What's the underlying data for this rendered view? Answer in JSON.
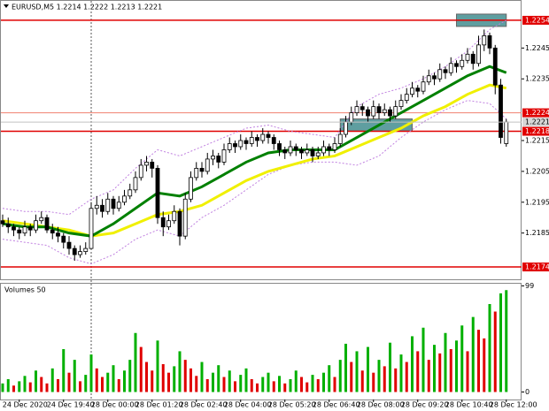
{
  "chart_data": [
    {
      "type": "candlestick",
      "title": "EURUSD,M5  1.2214 1.2222 1.2213 1.2221",
      "categories": [
        null,
        null,
        null,
        "24 Dec 2020",
        null,
        null,
        null,
        null,
        null,
        null,
        null,
        "24 Dec 19:40",
        null,
        null,
        null,
        null,
        null,
        null,
        null,
        "28 Dec 00:00",
        null,
        null,
        null,
        null,
        null,
        null,
        null,
        "28 Dec 01:20",
        null,
        null,
        null,
        null,
        null,
        null,
        null,
        "28 Dec 02:40",
        null,
        null,
        null,
        null,
        null,
        null,
        null,
        "28 Dec 04:00",
        null,
        null,
        null,
        null,
        null,
        null,
        null,
        "28 Dec 05:20",
        null,
        null,
        null,
        null,
        null,
        null,
        null,
        "28 Dec 06:40",
        null,
        null,
        null,
        null,
        null,
        null,
        null,
        "28 Dec 08:00",
        null,
        null,
        null,
        null,
        null,
        null,
        null,
        "28 Dec 09:20",
        null,
        null,
        null,
        null,
        null,
        null,
        null,
        "28 Dec 10:40",
        null,
        null,
        null,
        null,
        null,
        null,
        null,
        "28 Dec 12:00"
      ],
      "open": [
        1.2189,
        1.2188,
        1.2187,
        1.2186,
        1.2185,
        1.2187,
        1.2186,
        1.2189,
        1.219,
        1.2186,
        1.2185,
        1.2184,
        1.2182,
        1.218,
        1.2178,
        1.2179,
        1.218,
        1.2193,
        1.2194,
        1.2192,
        1.2196,
        1.2193,
        1.2195,
        1.2197,
        1.2199,
        1.2203,
        1.2207,
        1.2208,
        1.2206,
        1.219,
        1.2187,
        1.2189,
        1.2192,
        1.2184,
        1.2196,
        1.2203,
        1.2206,
        1.2205,
        1.2209,
        1.221,
        1.2208,
        1.2212,
        1.2214,
        1.2213,
        1.2215,
        1.2214,
        1.2216,
        1.2215,
        1.2217,
        1.2216,
        1.2214,
        1.2212,
        1.2211,
        1.2213,
        1.2212,
        1.2211,
        1.2212,
        1.221,
        1.2211,
        1.2213,
        1.2212,
        1.2214,
        1.2217,
        1.2221,
        1.2224,
        1.2226,
        1.2225,
        1.2223,
        1.2226,
        1.2224,
        1.2225,
        1.2223,
        1.2226,
        1.2228,
        1.223,
        1.2232,
        1.2231,
        1.2234,
        1.2236,
        1.2235,
        1.2238,
        1.2237,
        1.224,
        1.2239,
        1.2241,
        1.2243,
        1.224,
        1.2246,
        1.2249,
        1.2245,
        1.2233,
        1.2214
      ],
      "high": [
        1.2191,
        1.219,
        1.2188,
        1.2187,
        1.2189,
        1.2188,
        1.2191,
        1.2192,
        1.2191,
        1.2188,
        1.2187,
        1.2185,
        1.2184,
        1.2181,
        1.2181,
        1.2182,
        1.2195,
        1.2197,
        1.2196,
        1.2198,
        1.2197,
        1.2197,
        1.2199,
        1.2201,
        1.2205,
        1.2209,
        1.221,
        1.2209,
        1.2207,
        1.2192,
        1.2191,
        1.2194,
        1.2193,
        1.2198,
        1.2205,
        1.2208,
        1.2208,
        1.2211,
        1.2212,
        1.2211,
        1.2214,
        1.2216,
        1.2215,
        1.2217,
        1.2216,
        1.2218,
        1.2217,
        1.2219,
        1.2218,
        1.2217,
        1.2215,
        1.2213,
        1.2215,
        1.2214,
        1.2213,
        1.2214,
        1.2213,
        1.2213,
        1.2215,
        1.2214,
        1.2216,
        1.2219,
        1.2223,
        1.2226,
        1.2228,
        1.2227,
        1.2226,
        1.2228,
        1.2227,
        1.2227,
        1.2226,
        1.2228,
        1.223,
        1.2232,
        1.2234,
        1.2233,
        1.2236,
        1.2238,
        1.2237,
        1.224,
        1.2239,
        1.2242,
        1.2241,
        1.2243,
        1.2245,
        1.2244,
        1.2249,
        1.2251,
        1.225,
        1.2246,
        1.2235,
        1.2222
      ],
      "low": [
        1.2187,
        1.2185,
        1.2184,
        1.2183,
        1.2184,
        1.2184,
        1.2185,
        1.2188,
        1.2185,
        1.2183,
        1.2182,
        1.218,
        1.2178,
        1.2176,
        1.2177,
        1.2178,
        1.218,
        1.2191,
        1.219,
        1.2191,
        1.2191,
        1.2192,
        1.2194,
        1.2196,
        1.2198,
        1.2202,
        1.2205,
        1.2203,
        1.2188,
        1.2184,
        1.2186,
        1.2188,
        1.2181,
        1.2183,
        1.2195,
        1.2202,
        1.2203,
        1.2204,
        1.2207,
        1.2206,
        1.2207,
        1.2211,
        1.2211,
        1.2212,
        1.2212,
        1.2213,
        1.2213,
        1.2214,
        1.2214,
        1.2212,
        1.221,
        1.2209,
        1.221,
        1.221,
        1.2209,
        1.221,
        1.2208,
        1.2209,
        1.221,
        1.221,
        1.2211,
        1.2213,
        1.2216,
        1.222,
        1.2223,
        1.2223,
        1.2221,
        1.2222,
        1.2222,
        1.2223,
        1.2221,
        1.2222,
        1.2225,
        1.2227,
        1.2229,
        1.2229,
        1.223,
        1.2233,
        1.2233,
        1.2234,
        1.2235,
        1.2236,
        1.2237,
        1.2238,
        1.224,
        1.2238,
        1.2239,
        1.2244,
        1.2243,
        1.223,
        1.2214,
        1.2213
      ],
      "close": [
        1.2188,
        1.2187,
        1.2186,
        1.2185,
        1.2187,
        1.2186,
        1.2189,
        1.219,
        1.2186,
        1.2185,
        1.2184,
        1.2182,
        1.218,
        1.2178,
        1.2179,
        1.218,
        1.2193,
        1.2194,
        1.2192,
        1.2196,
        1.2193,
        1.2195,
        1.2197,
        1.2199,
        1.2203,
        1.2207,
        1.2208,
        1.2206,
        1.219,
        1.2187,
        1.2189,
        1.2192,
        1.2184,
        1.2196,
        1.2203,
        1.2206,
        1.2205,
        1.2209,
        1.221,
        1.2208,
        1.2212,
        1.2214,
        1.2213,
        1.2215,
        1.2214,
        1.2216,
        1.2215,
        1.2217,
        1.2216,
        1.2214,
        1.2212,
        1.2211,
        1.2213,
        1.2212,
        1.2211,
        1.2212,
        1.221,
        1.2211,
        1.2213,
        1.2212,
        1.2214,
        1.2217,
        1.2221,
        1.2224,
        1.2226,
        1.2225,
        1.2223,
        1.2226,
        1.2224,
        1.2225,
        1.2223,
        1.2226,
        1.2228,
        1.223,
        1.2232,
        1.2231,
        1.2234,
        1.2236,
        1.2235,
        1.2238,
        1.2237,
        1.224,
        1.2239,
        1.2241,
        1.2243,
        1.224,
        1.2246,
        1.2249,
        1.2245,
        1.2233,
        1.2216,
        1.2221
      ],
      "up_color": "#ffffff",
      "down_color": "#000000",
      "line_x": [
        0,
        4,
        8,
        12,
        16,
        20,
        24,
        28,
        32,
        36,
        40,
        44,
        48,
        52,
        56,
        60,
        64,
        68,
        72,
        76,
        80,
        84,
        88,
        91
      ],
      "lines": [
        {
          "color": "#c080e0",
          "dashed": true,
          "width": 1,
          "values": [
            1.2193,
            1.2192,
            1.2192,
            1.2191,
            1.2196,
            1.2199,
            1.2206,
            1.2212,
            1.221,
            1.2213,
            1.2216,
            1.2219,
            1.222,
            1.2218,
            1.2217,
            1.2216,
            1.2226,
            1.223,
            1.2232,
            1.2235,
            1.2239,
            1.2244,
            1.2251,
            1.2254
          ]
        },
        {
          "color": "#c080e0",
          "dashed": true,
          "width": 1,
          "values": [
            1.2183,
            1.2182,
            1.2181,
            1.2177,
            1.2175,
            1.2178,
            1.2183,
            1.2186,
            1.2184,
            1.219,
            1.2194,
            1.2199,
            1.2204,
            1.2207,
            1.2208,
            1.2208,
            1.2207,
            1.221,
            1.2216,
            1.2221,
            1.2225,
            1.2228,
            1.2227,
            1.2222
          ]
        },
        {
          "color": "#f0f000",
          "dashed": false,
          "width": 3,
          "values": [
            1.2189,
            1.2188,
            1.2187,
            1.2186,
            1.2184,
            1.2185,
            1.2188,
            1.2191,
            1.2192,
            1.2194,
            1.2198,
            1.2202,
            1.2205,
            1.2207,
            1.2209,
            1.221,
            1.2213,
            1.2216,
            1.2219,
            1.2223,
            1.2226,
            1.223,
            1.2233,
            1.2232
          ]
        },
        {
          "color": "#008000",
          "dashed": false,
          "width": 3,
          "values": [
            1.2188,
            1.2187,
            1.2187,
            1.2185,
            1.2184,
            1.2188,
            1.2193,
            1.2198,
            1.2197,
            1.22,
            1.2204,
            1.2208,
            1.2211,
            1.2212,
            1.2212,
            1.2212,
            1.2216,
            1.222,
            1.2224,
            1.2228,
            1.2232,
            1.2236,
            1.2239,
            1.2237
          ]
        }
      ],
      "zones": [
        {
          "x": [
            82,
            91
          ],
          "y": [
            1.2252,
            1.2256
          ]
        },
        {
          "x": [
            61,
            74
          ],
          "y": [
            1.2218,
            1.2222
          ]
        }
      ],
      "zone_color": "#5f9ea0",
      "vlines": [
        16
      ],
      "levels": [
        {
          "value": 1.2254,
          "color": "#e00000"
        },
        {
          "value": 1.2224,
          "color": "#f08070"
        },
        {
          "value": 1.2218,
          "color": "#e00000"
        },
        {
          "value": 1.2174,
          "color": "#e00000"
        }
      ],
      "last_price": 1.2221,
      "ylim": [
        1.217,
        1.226
      ],
      "yticks": [
        1.2245,
        1.2235,
        1.2215,
        1.2205,
        1.2195,
        1.2185
      ]
    },
    {
      "type": "bar",
      "title": "Volumes 50",
      "values": [
        8,
        12,
        6,
        10,
        15,
        9,
        20,
        14,
        8,
        22,
        12,
        40,
        18,
        30,
        10,
        16,
        35,
        22,
        14,
        18,
        25,
        12,
        20,
        30,
        55,
        42,
        28,
        20,
        48,
        26,
        18,
        24,
        38,
        30,
        22,
        15,
        28,
        12,
        18,
        25,
        14,
        20,
        10,
        16,
        22,
        12,
        8,
        14,
        18,
        10,
        15,
        8,
        12,
        20,
        14,
        9,
        16,
        12,
        18,
        25,
        14,
        30,
        45,
        28,
        38,
        20,
        42,
        18,
        30,
        24,
        46,
        22,
        35,
        28,
        52,
        38,
        60,
        30,
        44,
        36,
        55,
        40,
        48,
        62,
        38,
        70,
        58,
        50,
        82,
        75,
        92,
        95
      ],
      "up_color": "#00b000",
      "down_color": "#e00000",
      "ylim": [
        -7,
        101
      ],
      "yticks": [
        0,
        99
      ]
    }
  ]
}
